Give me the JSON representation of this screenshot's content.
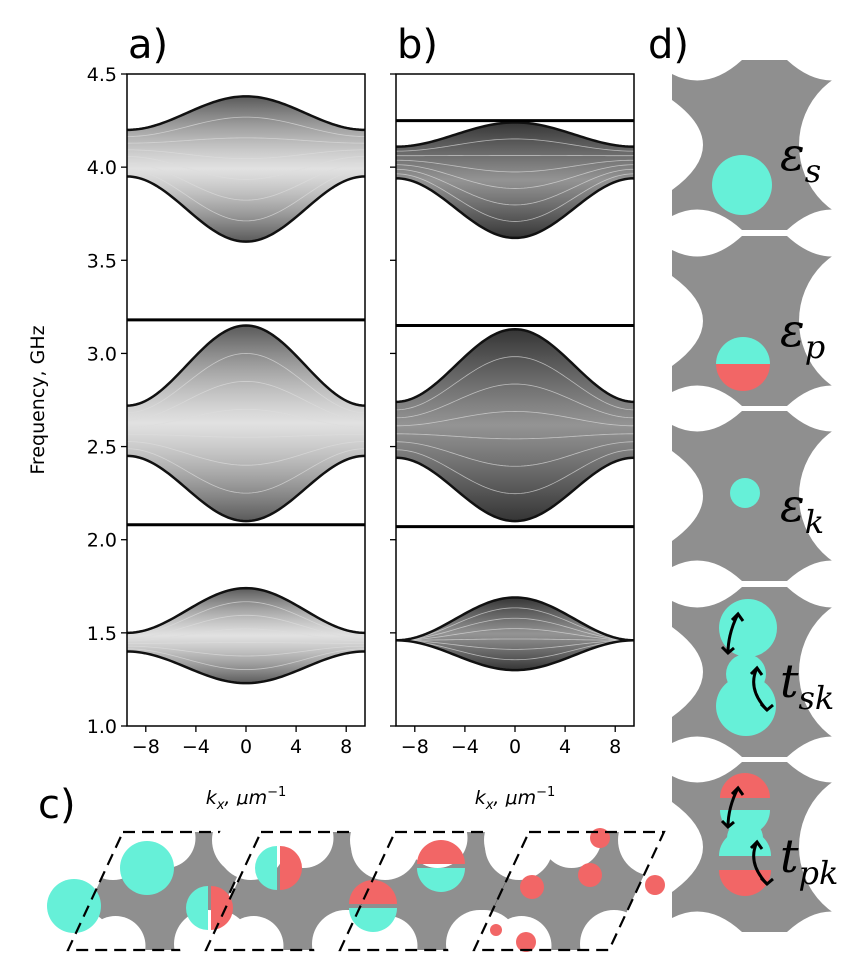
{
  "panels": {
    "a": "a)",
    "b": "b)",
    "c": "c)",
    "d": "d)"
  },
  "ylabel": "Frequency, GHz",
  "xlabel_a": "k",
  "xlabel_sub": "x",
  "xlabel_unit": ", μm",
  "xlabel_exp": "−1",
  "cell_labels": [
    {
      "main": "ε",
      "sub": "s"
    },
    {
      "main": "ε",
      "sub": "p"
    },
    {
      "main": "ε",
      "sub": "k"
    },
    {
      "main": "t",
      "sub": "sk"
    },
    {
      "main": "t",
      "sub": "pk"
    }
  ],
  "colors": {
    "cyan": "#66f0d8",
    "red": "#f26666",
    "gray": "#8f8f8f",
    "arrow": "#000000"
  },
  "chart_data": [
    {
      "type": "line",
      "panel": "a",
      "ylabel": "Frequency, GHz",
      "xlabel": "k_x, μm^-1",
      "xlim": [
        -9.5,
        9.5
      ],
      "ylim": [
        1.0,
        4.5
      ],
      "xticks": [
        -8,
        -4,
        0,
        4,
        8
      ],
      "yticks": [
        1.0,
        1.5,
        2.0,
        2.5,
        3.0,
        3.5,
        4.0,
        4.5
      ],
      "xtick_labels": [
        "−8",
        "−4",
        "0",
        "4",
        "8"
      ],
      "ytick_labels": [
        "1.0",
        "1.5",
        "2.0",
        "2.5",
        "3.0",
        "3.5",
        "4.0",
        "4.5"
      ],
      "flat_bands": [
        2.08,
        3.18
      ],
      "band_groups": [
        {
          "edge_kx": 9.5,
          "lower_center": 1.23,
          "lower_edge": 1.4,
          "upper_center": 1.74,
          "upper_edge": 1.5
        },
        {
          "edge_kx": 9.5,
          "lower_center": 2.1,
          "lower_edge": 2.45,
          "upper_center": 3.15,
          "upper_edge": 2.72
        },
        {
          "edge_kx": 9.5,
          "lower_center": 3.6,
          "lower_edge": 3.95,
          "upper_center": 4.38,
          "upper_edge": 4.2
        }
      ]
    },
    {
      "type": "line",
      "panel": "b",
      "xlabel": "k_x, μm^-1",
      "xlim": [
        -9.5,
        9.5
      ],
      "ylim": [
        1.0,
        4.5
      ],
      "xticks": [
        -8,
        -4,
        0,
        4,
        8
      ],
      "xtick_labels": [
        "−8",
        "−4",
        "0",
        "4",
        "8"
      ],
      "flat_bands": [
        2.07,
        3.15,
        4.25
      ],
      "band_groups": [
        {
          "lower_center": 1.3,
          "lower_edge": 1.46,
          "upper_center": 1.69,
          "upper_edge": 1.46
        },
        {
          "lower_center": 2.1,
          "lower_edge": 2.44,
          "upper_center": 3.13,
          "upper_edge": 2.74
        },
        {
          "lower_center": 3.62,
          "lower_edge": 3.94,
          "upper_center": 4.24,
          "upper_edge": 4.11
        }
      ]
    }
  ]
}
